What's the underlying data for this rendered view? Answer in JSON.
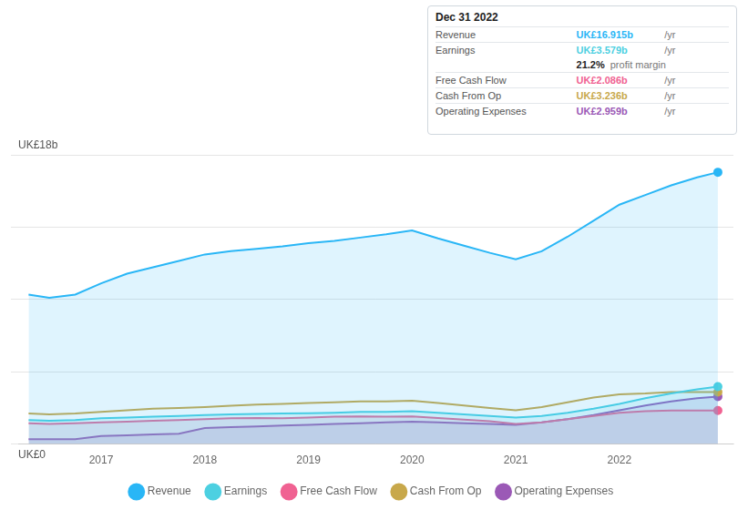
{
  "chart_data": {
    "type": "line",
    "x": [
      2016.3,
      2016.5,
      2016.75,
      2017.0,
      2017.25,
      2017.5,
      2017.75,
      2018.0,
      2018.25,
      2018.5,
      2018.75,
      2019.0,
      2019.25,
      2019.5,
      2019.75,
      2020.0,
      2020.25,
      2020.5,
      2020.75,
      2021.0,
      2021.25,
      2021.5,
      2021.75,
      2022.0,
      2022.25,
      2022.5,
      2022.75,
      2022.95
    ],
    "series": [
      {
        "name": "Revenue",
        "color": "#29b6f6",
        "type": "area",
        "values": [
          9.3,
          9.1,
          9.3,
          10.0,
          10.6,
          11.0,
          11.4,
          11.8,
          12.0,
          12.15,
          12.3,
          12.5,
          12.65,
          12.85,
          13.05,
          13.3,
          12.8,
          12.35,
          11.9,
          11.5,
          12.0,
          12.9,
          13.9,
          14.9,
          15.5,
          16.1,
          16.6,
          16.915
        ]
      },
      {
        "name": "Earnings",
        "color": "#4dd0e1",
        "type": "area",
        "values": [
          1.5,
          1.45,
          1.5,
          1.6,
          1.65,
          1.7,
          1.75,
          1.8,
          1.85,
          1.88,
          1.9,
          1.92,
          1.95,
          2.0,
          2.0,
          2.05,
          1.95,
          1.85,
          1.75,
          1.65,
          1.75,
          1.95,
          2.2,
          2.5,
          2.85,
          3.15,
          3.4,
          3.579
        ]
      },
      {
        "name": "Free Cash Flow",
        "color": "#f06292",
        "type": "area",
        "values": [
          1.3,
          1.25,
          1.3,
          1.35,
          1.4,
          1.45,
          1.5,
          1.55,
          1.6,
          1.62,
          1.6,
          1.65,
          1.7,
          1.72,
          1.7,
          1.72,
          1.62,
          1.52,
          1.42,
          1.25,
          1.35,
          1.55,
          1.75,
          1.95,
          2.05,
          2.086,
          2.086,
          2.086
        ]
      },
      {
        "name": "Cash From Op",
        "color": "#c8a84b",
        "type": "line",
        "values": [
          1.9,
          1.85,
          1.9,
          2.0,
          2.1,
          2.2,
          2.25,
          2.3,
          2.38,
          2.45,
          2.5,
          2.55,
          2.6,
          2.65,
          2.65,
          2.7,
          2.55,
          2.4,
          2.25,
          2.1,
          2.3,
          2.6,
          2.9,
          3.1,
          3.15,
          3.236,
          3.236,
          3.236
        ]
      },
      {
        "name": "Operating Expenses",
        "color": "#9b59b6",
        "type": "area",
        "values": [
          0.3,
          0.3,
          0.3,
          0.5,
          0.55,
          0.6,
          0.65,
          1.0,
          1.05,
          1.1,
          1.15,
          1.2,
          1.25,
          1.3,
          1.35,
          1.4,
          1.35,
          1.3,
          1.25,
          1.2,
          1.35,
          1.55,
          1.8,
          2.1,
          2.4,
          2.65,
          2.85,
          2.959
        ]
      }
    ],
    "xlim": [
      2016.2,
      2023.1
    ],
    "xticks": [
      2017,
      2018,
      2019,
      2020,
      2021,
      2022
    ],
    "ylim": [
      0,
      18
    ],
    "yticks": [
      0,
      4.5,
      9,
      13.5,
      18
    ],
    "tick_labels": "x",
    "grid": true,
    "legend": "bottom",
    "annotations": [
      {
        "text": "UK£18b",
        "y": 18
      },
      {
        "text": "UK£0",
        "y": 0
      }
    ],
    "info_box": {
      "title": "Dec 31 2022",
      "rows": [
        {
          "label": "Revenue",
          "value": "UK£16.915b",
          "unit": "/yr",
          "color": "#29b6f6"
        },
        {
          "label": "Earnings",
          "value": "UK£3.579b",
          "unit": "/yr",
          "color": "#4dd0e1"
        },
        {
          "value": "21.2%",
          "unit": "profit margin"
        },
        {
          "label": "Free Cash Flow",
          "value": "UK£2.086b",
          "unit": "/yr",
          "color": "#f06292"
        },
        {
          "label": "Cash From Op",
          "value": "UK£3.236b",
          "unit": "/yr",
          "color": "#c8a84b"
        },
        {
          "label": "Operating Expenses",
          "value": "UK£2.959b",
          "unit": "/yr",
          "color": "#9b59b6"
        }
      ]
    }
  }
}
